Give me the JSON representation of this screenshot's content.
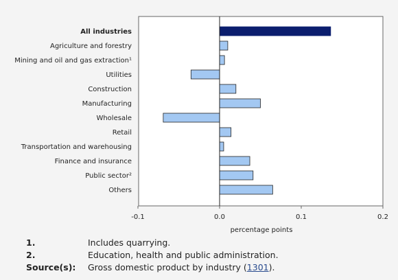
{
  "chart_data": {
    "type": "bar",
    "orientation": "horizontal",
    "categories": [
      "All industries",
      "Agriculture and forestry",
      "Mining and oil and gas extraction¹",
      "Utilities",
      "Construction",
      "Manufacturing",
      "Wholesale",
      "Retail",
      "Transportation and warehousing",
      "Finance and insurance",
      "Public sector²",
      "Others"
    ],
    "values": [
      0.136,
      0.01,
      0.006,
      -0.035,
      0.02,
      0.05,
      -0.069,
      0.014,
      0.005,
      0.037,
      0.041,
      0.065
    ],
    "highlight_category": "All industries",
    "xlabel": "percentage points",
    "ylabel": "",
    "xlim": [
      -0.1,
      0.2
    ],
    "xticks": [
      "-0.1",
      "0.0",
      "0.1",
      "0.2"
    ],
    "xtick_values": [
      -0.1,
      0.0,
      0.1,
      0.2
    ],
    "grid": false,
    "colors": {
      "highlight_bar": "#0b1e6e",
      "bar": "#a3c8f2",
      "bar_stroke": "#222222",
      "plot_background": "#ffffff"
    }
  },
  "notes": {
    "items": [
      {
        "key": "1.",
        "text": "Includes quarrying."
      },
      {
        "key": "2.",
        "text": "Education, health and public administration."
      }
    ],
    "source_key": "Source(s):",
    "source_text_before": "Gross domestic product by industry (",
    "source_link": "1301",
    "source_text_after": ")."
  }
}
